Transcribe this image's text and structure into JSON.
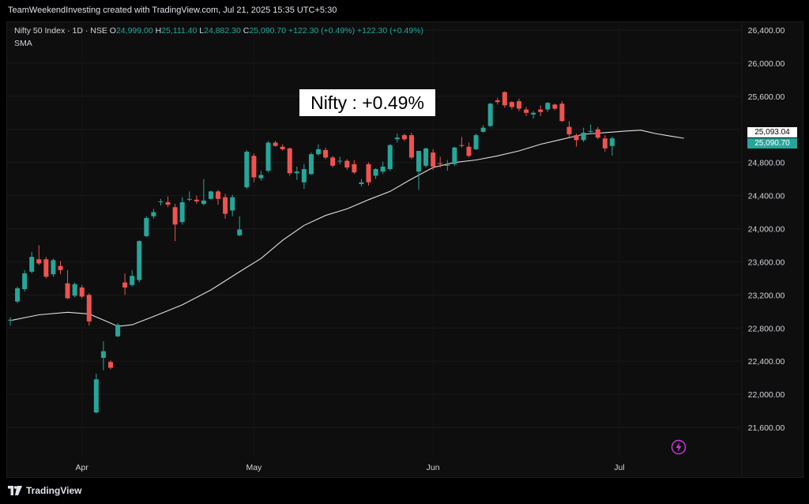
{
  "attribution": "TeamWeekendInvesting created with TradingView.com, Jul 21, 2025 15:35 UTC+5:30",
  "legend": {
    "symbol": "Nifty 50 Index · 1D · NSE",
    "o_label": "O",
    "o_value": "24,999.00",
    "h_label": "H",
    "h_value": "25,111.40",
    "l_label": "L",
    "l_value": "24,882.30",
    "c_label": "C",
    "c_value": "25,090.70",
    "change": "+122.30 (+0.49%)",
    "change2": "+122.30 (+0.49%)"
  },
  "indicator_label": "SMA",
  "annotation": "Nifty : +0.49%",
  "price_tags": {
    "sma": "25,093.04",
    "last": "25,090.70"
  },
  "brand": "TradingView",
  "icons": {
    "logo": "tradingview-logo-icon",
    "alert": "lightning-icon"
  },
  "colors": {
    "up": "#26a69a",
    "down": "#ef5350",
    "sma": "#e0e0e0",
    "background": "#0e0e0e"
  },
  "chart_data": {
    "type": "candlestick",
    "y_axis": {
      "min": 21200,
      "max": 26600,
      "ticks": [
        26400,
        26000,
        25600,
        25200,
        24800,
        24400,
        24000,
        23600,
        23200,
        22800,
        22400,
        22000,
        21600
      ],
      "tick_labels": [
        "26,400.00",
        "26,000.00",
        "25,600.00",
        "25,200.00",
        "24,800.00",
        "24,400.00",
        "24,000.00",
        "23,600.00",
        "23,200.00",
        "22,800.00",
        "22,400.00",
        "22,000.00",
        "21,600.00"
      ]
    },
    "x_axis": {
      "labels": [
        {
          "label": "Apr",
          "index": 10
        },
        {
          "label": "May",
          "index": 34
        },
        {
          "label": "Jun",
          "index": 59
        },
        {
          "label": "Jul",
          "index": 85
        }
      ]
    },
    "candles": [
      {
        "o": 22890,
        "h": 22930,
        "l": 22830,
        "c": 22900
      },
      {
        "o": 23120,
        "h": 23300,
        "l": 23100,
        "c": 23280
      },
      {
        "o": 23270,
        "h": 23500,
        "l": 23240,
        "c": 23460
      },
      {
        "o": 23480,
        "h": 23720,
        "l": 23460,
        "c": 23660
      },
      {
        "o": 23630,
        "h": 23800,
        "l": 23560,
        "c": 23580
      },
      {
        "o": 23630,
        "h": 23660,
        "l": 23400,
        "c": 23420
      },
      {
        "o": 23450,
        "h": 23640,
        "l": 23420,
        "c": 23620
      },
      {
        "o": 23550,
        "h": 23610,
        "l": 23450,
        "c": 23500
      },
      {
        "o": 23340,
        "h": 23500,
        "l": 23150,
        "c": 23160
      },
      {
        "o": 23190,
        "h": 23350,
        "l": 23170,
        "c": 23330
      },
      {
        "o": 23290,
        "h": 23320,
        "l": 23160,
        "c": 23180
      },
      {
        "o": 23200,
        "h": 23220,
        "l": 22830,
        "c": 22880
      },
      {
        "o": 21780,
        "h": 22250,
        "l": 21770,
        "c": 22180
      },
      {
        "o": 22440,
        "h": 22640,
        "l": 22290,
        "c": 22520
      },
      {
        "o": 22390,
        "h": 22410,
        "l": 22300,
        "c": 22320
      },
      {
        "o": 22700,
        "h": 22860,
        "l": 22690,
        "c": 22840
      },
      {
        "o": 23350,
        "h": 23460,
        "l": 23200,
        "c": 23290
      },
      {
        "o": 23320,
        "h": 23500,
        "l": 23300,
        "c": 23430
      },
      {
        "o": 23380,
        "h": 23860,
        "l": 23350,
        "c": 23850
      },
      {
        "o": 23910,
        "h": 24150,
        "l": 23900,
        "c": 24130
      },
      {
        "o": 24150,
        "h": 24240,
        "l": 24120,
        "c": 24200
      },
      {
        "o": 24320,
        "h": 24360,
        "l": 24280,
        "c": 24330
      },
      {
        "o": 24320,
        "h": 24390,
        "l": 24260,
        "c": 24290
      },
      {
        "o": 24260,
        "h": 24300,
        "l": 23850,
        "c": 24050
      },
      {
        "o": 24080,
        "h": 24380,
        "l": 24050,
        "c": 24320
      },
      {
        "o": 24350,
        "h": 24450,
        "l": 24330,
        "c": 24360
      },
      {
        "o": 24350,
        "h": 24400,
        "l": 24300,
        "c": 24330
      },
      {
        "o": 24300,
        "h": 24600,
        "l": 24280,
        "c": 24340
      },
      {
        "o": 24360,
        "h": 24460,
        "l": 24350,
        "c": 24450
      },
      {
        "o": 24450,
        "h": 24470,
        "l": 24290,
        "c": 24360
      },
      {
        "o": 24380,
        "h": 24420,
        "l": 24120,
        "c": 24180
      },
      {
        "o": 24220,
        "h": 24410,
        "l": 24150,
        "c": 24380
      },
      {
        "o": 23920,
        "h": 24150,
        "l": 23910,
        "c": 23990
      },
      {
        "o": 24500,
        "h": 24950,
        "l": 24480,
        "c": 24930
      },
      {
        "o": 24880,
        "h": 24910,
        "l": 24560,
        "c": 24620
      },
      {
        "o": 24610,
        "h": 24700,
        "l": 24580,
        "c": 24650
      },
      {
        "o": 24700,
        "h": 25060,
        "l": 24680,
        "c": 25040
      },
      {
        "o": 25040,
        "h": 25060,
        "l": 24990,
        "c": 25000
      },
      {
        "o": 24990,
        "h": 25020,
        "l": 24940,
        "c": 24960
      },
      {
        "o": 24970,
        "h": 24980,
        "l": 24640,
        "c": 24670
      },
      {
        "o": 24670,
        "h": 24750,
        "l": 24590,
        "c": 24690
      },
      {
        "o": 24560,
        "h": 24780,
        "l": 24480,
        "c": 24720
      },
      {
        "o": 24660,
        "h": 24920,
        "l": 24650,
        "c": 24900
      },
      {
        "o": 24900,
        "h": 25020,
        "l": 24880,
        "c": 24960
      },
      {
        "o": 24950,
        "h": 24980,
        "l": 24840,
        "c": 24860
      },
      {
        "o": 24860,
        "h": 24880,
        "l": 24740,
        "c": 24760
      },
      {
        "o": 24820,
        "h": 24870,
        "l": 24780,
        "c": 24820
      },
      {
        "o": 24820,
        "h": 24840,
        "l": 24710,
        "c": 24740
      },
      {
        "o": 24780,
        "h": 24830,
        "l": 24660,
        "c": 24680
      },
      {
        "o": 24540,
        "h": 24600,
        "l": 24510,
        "c": 24560
      },
      {
        "o": 24780,
        "h": 24800,
        "l": 24520,
        "c": 24560
      },
      {
        "o": 24640,
        "h": 24730,
        "l": 24600,
        "c": 24720
      },
      {
        "o": 24690,
        "h": 24810,
        "l": 24660,
        "c": 24750
      },
      {
        "o": 24720,
        "h": 25020,
        "l": 24700,
        "c": 25010
      },
      {
        "o": 25080,
        "h": 25150,
        "l": 25040,
        "c": 25100
      },
      {
        "o": 25130,
        "h": 25150,
        "l": 25060,
        "c": 25080
      },
      {
        "o": 25130,
        "h": 25160,
        "l": 24840,
        "c": 24860
      },
      {
        "o": 24690,
        "h": 24940,
        "l": 24470,
        "c": 24940
      },
      {
        "o": 24760,
        "h": 24980,
        "l": 24740,
        "c": 24970
      },
      {
        "o": 24920,
        "h": 24960,
        "l": 24710,
        "c": 24750
      },
      {
        "o": 24790,
        "h": 24870,
        "l": 24740,
        "c": 24780
      },
      {
        "o": 24760,
        "h": 24830,
        "l": 24700,
        "c": 24770
      },
      {
        "o": 24780,
        "h": 24990,
        "l": 24760,
        "c": 24980
      },
      {
        "o": 25010,
        "h": 25110,
        "l": 24980,
        "c": 25000
      },
      {
        "o": 24990,
        "h": 25040,
        "l": 24860,
        "c": 24880
      },
      {
        "o": 24960,
        "h": 25150,
        "l": 24950,
        "c": 25130
      },
      {
        "o": 25170,
        "h": 25250,
        "l": 25160,
        "c": 25220
      },
      {
        "o": 25240,
        "h": 25520,
        "l": 25230,
        "c": 25510
      },
      {
        "o": 25550,
        "h": 25580,
        "l": 25500,
        "c": 25530
      },
      {
        "o": 25650,
        "h": 25660,
        "l": 25460,
        "c": 25490
      },
      {
        "o": 25530,
        "h": 25540,
        "l": 25440,
        "c": 25470
      },
      {
        "o": 25540,
        "h": 25570,
        "l": 25420,
        "c": 25450
      },
      {
        "o": 25440,
        "h": 25470,
        "l": 25360,
        "c": 25400
      },
      {
        "o": 25380,
        "h": 25420,
        "l": 25330,
        "c": 25400
      },
      {
        "o": 25440,
        "h": 25490,
        "l": 25360,
        "c": 25410
      },
      {
        "o": 25440,
        "h": 25530,
        "l": 25410,
        "c": 25520
      },
      {
        "o": 25500,
        "h": 25510,
        "l": 25430,
        "c": 25450
      },
      {
        "o": 25510,
        "h": 25540,
        "l": 25290,
        "c": 25300
      },
      {
        "o": 25230,
        "h": 25300,
        "l": 25110,
        "c": 25140
      },
      {
        "o": 25130,
        "h": 25150,
        "l": 24990,
        "c": 25070
      },
      {
        "o": 25070,
        "h": 25220,
        "l": 25050,
        "c": 25160
      },
      {
        "o": 25170,
        "h": 25260,
        "l": 25140,
        "c": 25180
      },
      {
        "o": 25200,
        "h": 25230,
        "l": 25080,
        "c": 25100
      },
      {
        "o": 25090,
        "h": 25130,
        "l": 24930,
        "c": 24970
      },
      {
        "o": 24999,
        "h": 25111,
        "l": 24882,
        "c": 25091
      }
    ],
    "sma": [
      {
        "i": 0,
        "v": 22890
      },
      {
        "i": 4,
        "v": 22960
      },
      {
        "i": 8,
        "v": 22990
      },
      {
        "i": 11,
        "v": 22970
      },
      {
        "i": 14,
        "v": 22860
      },
      {
        "i": 15,
        "v": 22820
      },
      {
        "i": 17,
        "v": 22840
      },
      {
        "i": 20,
        "v": 22940
      },
      {
        "i": 24,
        "v": 23080
      },
      {
        "i": 28,
        "v": 23260
      },
      {
        "i": 32,
        "v": 23480
      },
      {
        "i": 35,
        "v": 23640
      },
      {
        "i": 38,
        "v": 23860
      },
      {
        "i": 41,
        "v": 24040
      },
      {
        "i": 44,
        "v": 24160
      },
      {
        "i": 47,
        "v": 24240
      },
      {
        "i": 50,
        "v": 24350
      },
      {
        "i": 53,
        "v": 24450
      },
      {
        "i": 56,
        "v": 24600
      },
      {
        "i": 59,
        "v": 24740
      },
      {
        "i": 62,
        "v": 24800
      },
      {
        "i": 65,
        "v": 24830
      },
      {
        "i": 68,
        "v": 24880
      },
      {
        "i": 71,
        "v": 24940
      },
      {
        "i": 74,
        "v": 25020
      },
      {
        "i": 77,
        "v": 25080
      },
      {
        "i": 80,
        "v": 25140
      },
      {
        "i": 83,
        "v": 25160
      },
      {
        "i": 86,
        "v": 25180
      },
      {
        "i": 88,
        "v": 25190
      },
      {
        "i": 90,
        "v": 25150
      },
      {
        "i": 92,
        "v": 25120
      },
      {
        "i": 94,
        "v": 25093
      }
    ]
  }
}
